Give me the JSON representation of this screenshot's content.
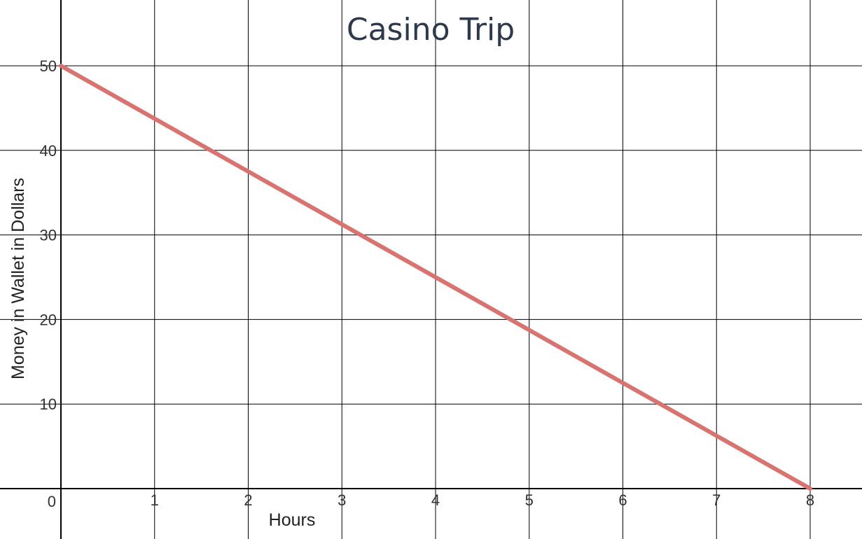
{
  "chart_data": {
    "type": "line",
    "title": "Casino Trip",
    "xlabel": "Hours",
    "ylabel": "Money in Wallet in Dollars",
    "xlim": [
      0,
      8.6
    ],
    "ylim": [
      0,
      57.5
    ],
    "x_ticks": [
      1,
      2,
      3,
      4,
      5,
      6,
      7,
      8
    ],
    "y_ticks": [
      10,
      20,
      30,
      40,
      50
    ],
    "origin_label": "0",
    "grid": true,
    "series": [
      {
        "x": [
          0,
          8
        ],
        "y": [
          50,
          0
        ],
        "color": "#d9736f"
      }
    ]
  }
}
